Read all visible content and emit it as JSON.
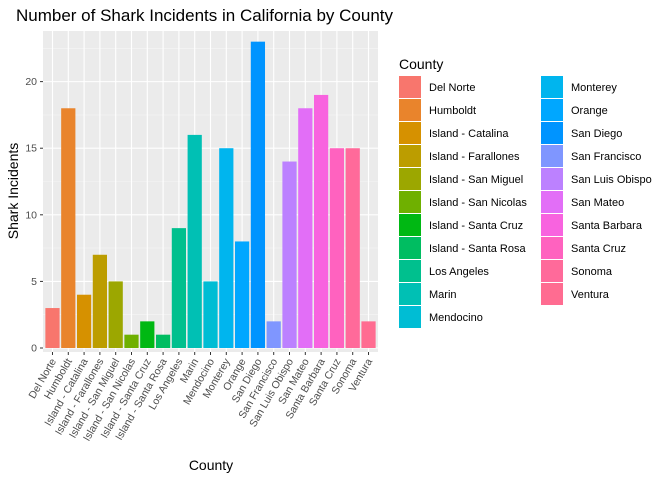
{
  "chart_data": {
    "type": "bar",
    "title": "Number of Shark Incidents in California by County",
    "xlabel": "County",
    "ylabel": "Shark Incidents",
    "ylim": [
      0,
      23.5
    ],
    "yticks": [
      0,
      5,
      10,
      15,
      20
    ],
    "grid": true,
    "legend_title": "County",
    "legend_position": "right",
    "categories": [
      "Del Norte",
      "Humboldt",
      "Island - Catalina",
      "Island - Farallones",
      "Island - San Miguel",
      "Island - San Nicolas",
      "Island - Santa Cruz",
      "Island - Santa Rosa",
      "Los Angeles",
      "Marin",
      "Mendocino",
      "Monterey",
      "Orange",
      "San Diego",
      "San Francisco",
      "San Luis Obispo",
      "San Mateo",
      "Santa Barbara",
      "Santa Cruz",
      "Sonoma",
      "Ventura"
    ],
    "values": [
      3,
      18,
      4,
      7,
      5,
      1,
      2,
      1,
      9,
      16,
      5,
      15,
      8,
      23,
      2,
      14,
      18,
      19,
      15,
      15,
      2
    ],
    "colors": [
      "#F8766D",
      "#E9842C",
      "#D69100",
      "#BC9D00",
      "#9CA700",
      "#6FB000",
      "#00B813",
      "#00BD61",
      "#00C08E",
      "#00C0B4",
      "#00BDD4",
      "#00B5EE",
      "#00A7FF",
      "#0094FF",
      "#7F96FF",
      "#BC81FF",
      "#E26EF7",
      "#F863DF",
      "#FF62BF",
      "#FF6A9A",
      "#FF6C91"
    ]
  }
}
